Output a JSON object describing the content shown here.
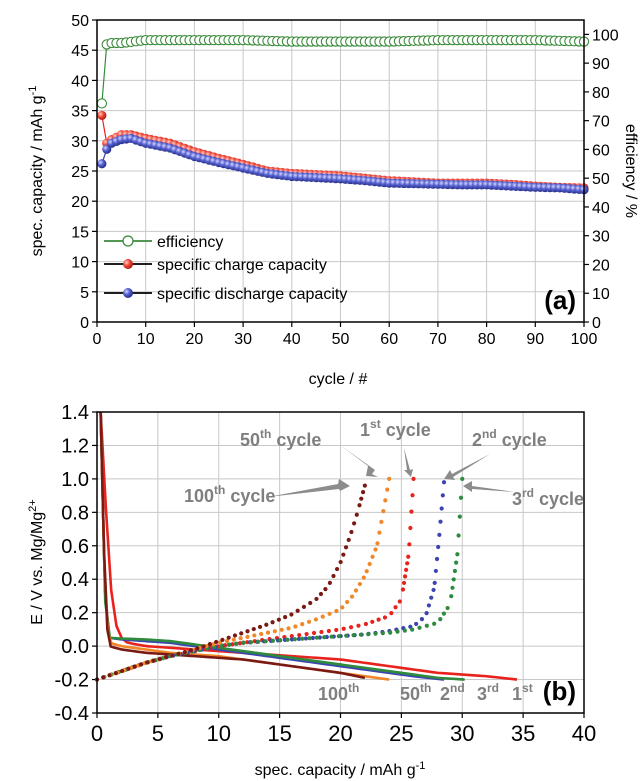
{
  "chart_data": [
    {
      "type": "scatter",
      "panel_label": "(a)",
      "xlabel": "cycle / #",
      "ylabel": "spec. capacity / mAh g",
      "ylabel_sup": "-1",
      "y2label": "efficiency / %",
      "xlim": [
        0,
        100
      ],
      "ylim": [
        0,
        50
      ],
      "y2lim": [
        0,
        105
      ],
      "xticks": [
        "0",
        "10",
        "20",
        "30",
        "40",
        "50",
        "60",
        "70",
        "80",
        "90",
        "100"
      ],
      "yticks": [
        "0",
        "5",
        "10",
        "15",
        "20",
        "25",
        "30",
        "35",
        "40",
        "45",
        "50"
      ],
      "y2ticks": [
        "0",
        "10",
        "20",
        "30",
        "40",
        "50",
        "60",
        "70",
        "80",
        "90",
        "100"
      ],
      "grid": true,
      "legend_position": "lower-left",
      "colors": {
        "efficiency": "#3a8a3a",
        "charge": "#e8221c",
        "discharge": "#3b44b0"
      },
      "series": [
        {
          "name": "efficiency",
          "axis": "y2",
          "x": [
            1,
            2,
            3,
            5,
            10,
            20,
            30,
            40,
            50,
            60,
            70,
            80,
            90,
            100
          ],
          "values": [
            76,
            96.5,
            97,
            97,
            98,
            98,
            98,
            97.5,
            97.5,
            97.5,
            98,
            98,
            98,
            97.5
          ]
        },
        {
          "name": "specific charge capacity",
          "axis": "y",
          "x": [
            1,
            2,
            3,
            5,
            7,
            10,
            15,
            20,
            25,
            30,
            35,
            40,
            45,
            50,
            55,
            60,
            65,
            70,
            75,
            80,
            85,
            90,
            95,
            100
          ],
          "values": [
            34.2,
            29.6,
            30.2,
            31,
            31,
            30.4,
            29.6,
            28.2,
            27.1,
            26.1,
            25,
            24.6,
            24.4,
            24.2,
            23.8,
            23.4,
            23.2,
            23,
            23,
            23,
            22.8,
            22.5,
            22.3,
            22.2
          ]
        },
        {
          "name": "specific discharge capacity",
          "axis": "y",
          "x": [
            1,
            2,
            3,
            5,
            7,
            10,
            15,
            20,
            25,
            30,
            35,
            40,
            45,
            50,
            55,
            60,
            65,
            70,
            75,
            80,
            85,
            90,
            95,
            100
          ],
          "values": [
            26.2,
            28.6,
            29.6,
            30.2,
            30.4,
            29.6,
            28.8,
            27.4,
            26.4,
            25.5,
            24.6,
            24.1,
            23.9,
            23.7,
            23.4,
            23,
            22.9,
            22.8,
            22.7,
            22.7,
            22.5,
            22.3,
            22.2,
            21.9
          ]
        }
      ]
    },
    {
      "type": "line",
      "panel_label": "(b)",
      "xlabel": "spec. capacity / mAh g",
      "xlabel_sup": "-1",
      "ylabel": "E / V vs. Mg/Mg",
      "ylabel_sup": "2+",
      "xlim": [
        0,
        40
      ],
      "ylim": [
        -0.4,
        1.4
      ],
      "xticks": [
        "0",
        "5",
        "10",
        "15",
        "20",
        "25",
        "30",
        "35",
        "40"
      ],
      "yticks": [
        "-0.4",
        "-0.2",
        "0.0",
        "0.2",
        "0.4",
        "0.6",
        "0.8",
        "1.0",
        "1.2",
        "1.4"
      ],
      "grid": true,
      "colors": {
        "cycle1": "#e8221c",
        "cycle2": "#3b44b0",
        "cycle3": "#2e8b3e",
        "cycle50": "#f0882a",
        "cycle100": "#7a1a14",
        "annotation": "#7f7f7f"
      },
      "cycle_labels": [
        {
          "main": "1",
          "sup": "st",
          "suffix": " cycle"
        },
        {
          "main": "2",
          "sup": "nd",
          "suffix": " cycle"
        },
        {
          "main": "3",
          "sup": "rd",
          "suffix": " cycle"
        },
        {
          "main": "50",
          "sup": "th",
          "suffix": " cycle"
        },
        {
          "main": "100",
          "sup": "th",
          "suffix": " cycle"
        }
      ],
      "end_labels": [
        {
          "main": "100",
          "sup": "th"
        },
        {
          "main": "50",
          "sup": "th"
        },
        {
          "main": "2",
          "sup": "nd"
        },
        {
          "main": "3",
          "sup": "rd"
        },
        {
          "main": "1",
          "sup": "st"
        }
      ],
      "discharge_series": [
        {
          "cycle": "1",
          "x": [
            0.3,
            0.6,
            0.9,
            1.2,
            1.6,
            2.0,
            2.5,
            4,
            6,
            8,
            10,
            12,
            14,
            16,
            18,
            20,
            22,
            24,
            26,
            28,
            30,
            32,
            34.5
          ],
          "values": [
            1.4,
            1.0,
            0.6,
            0.3,
            0.12,
            0.05,
            0.02,
            0.0,
            -0.01,
            -0.02,
            -0.03,
            -0.04,
            -0.05,
            -0.06,
            -0.07,
            -0.08,
            -0.1,
            -0.12,
            -0.14,
            -0.16,
            -0.17,
            -0.18,
            -0.2
          ]
        },
        {
          "cycle": "2",
          "x": [
            0.3,
            0.5,
            0.7,
            1.0,
            2,
            4,
            6,
            8,
            10,
            12,
            14,
            16,
            18,
            20,
            22,
            24,
            26,
            28.5
          ],
          "values": [
            1.4,
            0.8,
            0.2,
            0.05,
            0.04,
            0.03,
            0.02,
            0.0,
            -0.02,
            -0.04,
            -0.06,
            -0.08,
            -0.1,
            -0.12,
            -0.14,
            -0.16,
            -0.18,
            -0.2
          ]
        },
        {
          "cycle": "3",
          "x": [
            0.3,
            0.5,
            0.7,
            1.0,
            2,
            4,
            6,
            8,
            10,
            12,
            14,
            16,
            18,
            20,
            22,
            24,
            26,
            28,
            30.2
          ],
          "values": [
            1.4,
            0.8,
            0.2,
            0.05,
            0.045,
            0.04,
            0.03,
            0.01,
            -0.01,
            -0.03,
            -0.05,
            -0.07,
            -0.09,
            -0.11,
            -0.13,
            -0.15,
            -0.17,
            -0.19,
            -0.2
          ]
        },
        {
          "cycle": "50",
          "x": [
            0.3,
            0.5,
            0.7,
            1.0,
            2,
            4,
            6,
            8,
            10,
            12,
            14,
            16,
            18,
            20,
            22,
            24
          ],
          "values": [
            1.4,
            0.8,
            0.2,
            0.02,
            0.0,
            -0.02,
            -0.04,
            -0.05,
            -0.06,
            -0.08,
            -0.1,
            -0.12,
            -0.14,
            -0.16,
            -0.18,
            -0.2
          ]
        },
        {
          "cycle": "100",
          "x": [
            0.3,
            0.5,
            0.7,
            1.0,
            2,
            4,
            6,
            8,
            10,
            12,
            14,
            16,
            18,
            20,
            22
          ],
          "values": [
            1.4,
            0.8,
            0.2,
            0.0,
            -0.02,
            -0.04,
            -0.05,
            -0.06,
            -0.07,
            -0.08,
            -0.1,
            -0.12,
            -0.14,
            -0.16,
            -0.19
          ]
        }
      ],
      "charge_series": [
        {
          "cycle": "1",
          "x": [
            0,
            2,
            4,
            6,
            8,
            10,
            12,
            14,
            16,
            18,
            20,
            22,
            24,
            25,
            25.6,
            26
          ],
          "values": [
            -0.2,
            -0.15,
            -0.1,
            -0.06,
            -0.03,
            0.0,
            0.02,
            0.04,
            0.06,
            0.08,
            0.1,
            0.13,
            0.18,
            0.28,
            0.55,
            1.0
          ]
        },
        {
          "cycle": "2",
          "x": [
            0,
            2,
            4,
            6,
            8,
            10,
            12,
            14,
            16,
            18,
            20,
            22,
            24,
            26,
            27,
            27.7,
            28.1,
            28.5
          ],
          "values": [
            -0.2,
            -0.15,
            -0.1,
            -0.06,
            -0.03,
            0.0,
            0.02,
            0.03,
            0.04,
            0.05,
            0.06,
            0.07,
            0.09,
            0.12,
            0.18,
            0.35,
            0.65,
            0.98
          ]
        },
        {
          "cycle": "3",
          "x": [
            0,
            2,
            4,
            6,
            8,
            10,
            12,
            14,
            16,
            18,
            20,
            22,
            24,
            26,
            28,
            29,
            29.6,
            30
          ],
          "values": [
            -0.2,
            -0.15,
            -0.1,
            -0.06,
            -0.03,
            0.0,
            0.02,
            0.03,
            0.04,
            0.05,
            0.06,
            0.07,
            0.08,
            0.1,
            0.14,
            0.25,
            0.55,
            1.0
          ]
        },
        {
          "cycle": "50",
          "x": [
            0,
            2,
            4,
            6,
            8,
            10,
            12,
            14,
            16,
            18,
            20,
            21,
            22,
            23,
            23.5,
            24
          ],
          "values": [
            -0.2,
            -0.15,
            -0.1,
            -0.06,
            -0.02,
            0.02,
            0.05,
            0.08,
            0.11,
            0.16,
            0.22,
            0.3,
            0.42,
            0.6,
            0.8,
            1.0
          ]
        },
        {
          "cycle": "100",
          "x": [
            0,
            2,
            4,
            6,
            8,
            10,
            12,
            14,
            16,
            18,
            19,
            20,
            20.8,
            21.4,
            22
          ],
          "values": [
            -0.2,
            -0.15,
            -0.1,
            -0.06,
            -0.02,
            0.03,
            0.08,
            0.13,
            0.19,
            0.28,
            0.36,
            0.5,
            0.66,
            0.8,
            0.96
          ]
        }
      ]
    }
  ]
}
